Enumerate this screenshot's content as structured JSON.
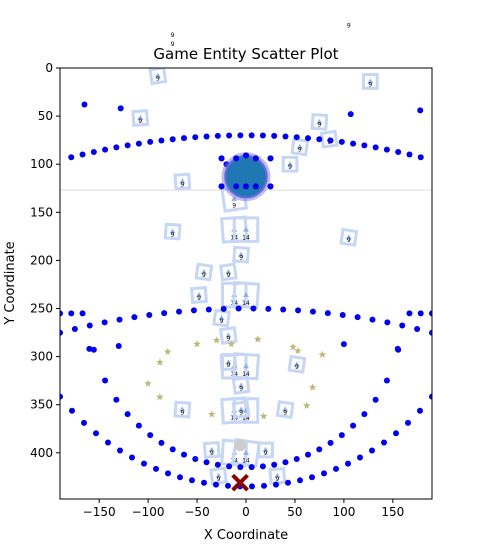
{
  "chart_data": {
    "type": "scatter",
    "title": "Game Entity Scatter Plot",
    "xlabel": "X Coordinate",
    "ylabel": "Y Coordinate",
    "xlim": [
      -190,
      190
    ],
    "ylim": [
      448,
      0
    ],
    "y_inverted": true,
    "x_ticks": [
      "−150",
      "−100",
      "−50",
      "0",
      "50",
      "100",
      "150"
    ],
    "x_tick_values": [
      -150,
      -100,
      -50,
      0,
      50,
      100,
      150
    ],
    "y_ticks": [
      "0",
      "50",
      "100",
      "150",
      "200",
      "250",
      "300",
      "350",
      "400"
    ],
    "y_tick_values": [
      0,
      50,
      100,
      150,
      200,
      250,
      300,
      350,
      400
    ],
    "grid": false,
    "legend": "none",
    "reference_line_y": 127,
    "colors": {
      "dots": "#0000ee",
      "player": "#1f77b4",
      "player_ring": "#6a6ae0",
      "box": "#c6d6f5",
      "triangle": "#8fb0e8",
      "star": "#bdb87a",
      "enemy_x": "#8b0000",
      "ghost": "#cccccc",
      "refline": "#dddddd"
    },
    "rings": [
      {
        "name": "ring-upper",
        "cy": 255,
        "r": 160,
        "from": -190,
        "to": 190,
        "points": 34
      },
      {
        "name": "ring-lower",
        "cy": -5,
        "r": 180,
        "from": -190,
        "to": 190,
        "points": 34
      },
      {
        "name": "ring-middle",
        "cy": 980,
        "r": 730,
        "from": -190,
        "to": 190,
        "points": 26
      },
      {
        "name": "ring-bottom",
        "cy": 195,
        "r": 240,
        "from": -190,
        "to": 190,
        "points": 32
      }
    ],
    "dot_series": [
      {
        "x": -165,
        "y": 38
      },
      {
        "x": -128,
        "y": 42
      },
      {
        "x": 107,
        "y": 48
      },
      {
        "x": 178,
        "y": 44
      },
      {
        "x": -20,
        "y": 100
      },
      {
        "x": 5,
        "y": 100
      },
      {
        "x": -130,
        "y": 289
      },
      {
        "x": 100,
        "y": 287
      },
      {
        "x": -160,
        "y": 292
      },
      {
        "x": 155,
        "y": 292
      }
    ],
    "player": {
      "x": 0,
      "y": 113,
      "r": 25
    },
    "player_row_dots": [
      {
        "x": -25,
        "y": 94
      },
      {
        "x": -10,
        "y": 94
      },
      {
        "x": 0,
        "y": 91
      },
      {
        "x": 10,
        "y": 94
      },
      {
        "x": 25,
        "y": 94
      },
      {
        "x": -25,
        "y": 123
      },
      {
        "x": -10,
        "y": 123
      },
      {
        "x": 0,
        "y": 123
      },
      {
        "x": 10,
        "y": 123
      },
      {
        "x": 25,
        "y": 123
      }
    ],
    "boxes": [
      {
        "x": -90,
        "y": 8,
        "size": 14,
        "label": "9"
      },
      {
        "x": -108,
        "y": 52,
        "size": 14,
        "label": "9"
      },
      {
        "x": 127,
        "y": 14,
        "size": 14,
        "label": "9"
      },
      {
        "x": 75,
        "y": 56,
        "size": 14,
        "label": "9"
      },
      {
        "x": 55,
        "y": 82,
        "size": 14,
        "label": "9"
      },
      {
        "x": 85,
        "y": 74,
        "size": 14,
        "label": "9"
      },
      {
        "x": -65,
        "y": 118,
        "size": 14,
        "label": "9"
      },
      {
        "x": 45,
        "y": 100,
        "size": 14,
        "label": "9"
      },
      {
        "x": -75,
        "y": 170,
        "size": 14,
        "label": "9"
      },
      {
        "x": 105,
        "y": 176,
        "size": 14,
        "label": "9"
      },
      {
        "x": -12,
        "y": 136,
        "size": 22,
        "label": "9"
      },
      {
        "x": -12,
        "y": 168,
        "size": 24,
        "label": "14"
      },
      {
        "x": 0,
        "y": 168,
        "size": 24,
        "label": "14"
      },
      {
        "x": -5,
        "y": 194,
        "size": 14,
        "label": "9"
      },
      {
        "x": -43,
        "y": 212,
        "size": 14,
        "label": "9"
      },
      {
        "x": -18,
        "y": 212,
        "size": 14,
        "label": "9"
      },
      {
        "x": -48,
        "y": 236,
        "size": 14,
        "label": "9"
      },
      {
        "x": -12,
        "y": 236,
        "size": 24,
        "label": "14"
      },
      {
        "x": 0,
        "y": 236,
        "size": 24,
        "label": "14"
      },
      {
        "x": -25,
        "y": 260,
        "size": 14,
        "label": "9"
      },
      {
        "x": -18,
        "y": 278,
        "size": 14,
        "label": "9"
      },
      {
        "x": -18,
        "y": 306,
        "size": 14,
        "label": "9"
      },
      {
        "x": -12,
        "y": 310,
        "size": 24,
        "label": "14"
      },
      {
        "x": 0,
        "y": 310,
        "size": 24,
        "label": "14"
      },
      {
        "x": 52,
        "y": 308,
        "size": 14,
        "label": "9"
      },
      {
        "x": -5,
        "y": 330,
        "size": 14,
        "label": "9"
      },
      {
        "x": -12,
        "y": 356,
        "size": 24,
        "label": "14"
      },
      {
        "x": 0,
        "y": 356,
        "size": 24,
        "label": "14"
      },
      {
        "x": -65,
        "y": 355,
        "size": 14,
        "label": "9"
      },
      {
        "x": 40,
        "y": 355,
        "size": 14,
        "label": "9"
      },
      {
        "x": -5,
        "y": 355,
        "size": 14,
        "label": "9"
      },
      {
        "x": -35,
        "y": 397,
        "size": 14,
        "label": "9"
      },
      {
        "x": 20,
        "y": 397,
        "size": 14,
        "label": "9"
      },
      {
        "x": -12,
        "y": 400,
        "size": 24,
        "label": "14"
      },
      {
        "x": 0,
        "y": 400,
        "size": 24,
        "label": "14"
      },
      {
        "x": -28,
        "y": 424,
        "size": 14,
        "label": "9"
      },
      {
        "x": 32,
        "y": 424,
        "size": 14,
        "label": "9"
      }
    ],
    "stars": [
      {
        "x": -80,
        "y": 295
      },
      {
        "x": -50,
        "y": 287
      },
      {
        "x": -30,
        "y": 283
      },
      {
        "x": -88,
        "y": 306
      },
      {
        "x": -100,
        "y": 328
      },
      {
        "x": -88,
        "y": 342
      },
      {
        "x": -35,
        "y": 360
      },
      {
        "x": 48,
        "y": 290
      },
      {
        "x": 78,
        "y": 298
      },
      {
        "x": 68,
        "y": 332
      },
      {
        "x": 62,
        "y": 351
      },
      {
        "x": 18,
        "y": 362
      },
      {
        "x": 12,
        "y": 282
      },
      {
        "x": 53,
        "y": 294
      },
      {
        "x": -15,
        "y": 287
      }
    ],
    "enemy": {
      "x": -6,
      "y": 431
    },
    "ghost": {
      "x": -6,
      "y": 392
    },
    "top_labels": [
      {
        "x": -75,
        "y": -32,
        "text": "9"
      },
      {
        "x": -75,
        "y": -23,
        "text": "9"
      },
      {
        "x": 105,
        "y": -42,
        "text": "9"
      }
    ]
  }
}
